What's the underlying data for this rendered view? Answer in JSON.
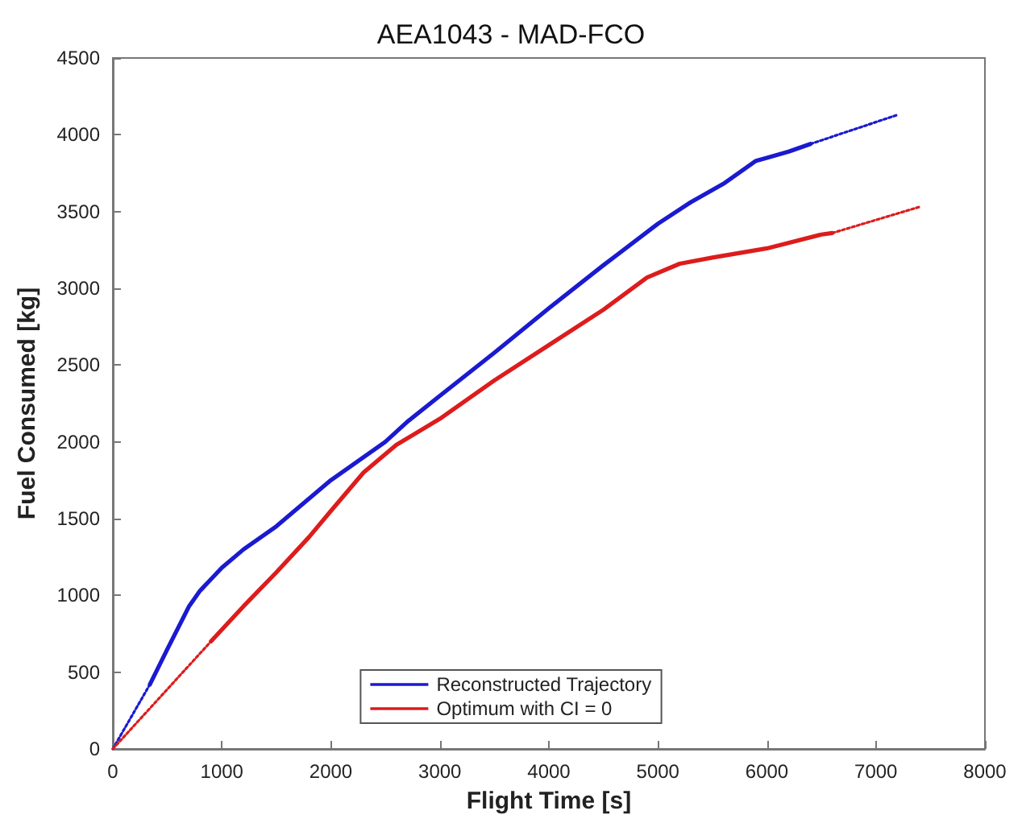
{
  "chart_data": {
    "type": "line",
    "title": "AEA1043 - MAD-FCO",
    "xlabel": "Flight Time [s]",
    "ylabel": "Fuel Consumed [kg]",
    "xlim": [
      0,
      8000
    ],
    "xticks": [
      0,
      1000,
      2000,
      3000,
      4000,
      5000,
      6000,
      7000,
      8000
    ],
    "ylim": [
      0,
      4500
    ],
    "yticks": [
      0,
      500,
      1000,
      1500,
      2000,
      2500,
      3000,
      3500,
      4000,
      4500
    ],
    "grid": false,
    "legend": "bottom",
    "marker": "none",
    "series": [
      {
        "name": "Reconstructed Trajectory",
        "color": "#1a1ad0",
        "line_style": "solid",
        "x": [
          340,
          500,
          700,
          800,
          1000,
          1200,
          1500,
          2000,
          2500,
          2700,
          3000,
          3500,
          4000,
          4500,
          5000,
          5300,
          5600,
          5900,
          6000,
          6200,
          6400
        ],
        "values": [
          420,
          650,
          930,
          1030,
          1180,
          1300,
          1450,
          1750,
          2000,
          2130,
          2300,
          2580,
          2870,
          3150,
          3420,
          3560,
          3680,
          3830,
          3850,
          3890,
          3940
        ]
      },
      {
        "name": "Optimum with CI = 0",
        "color": "#dd1c1c",
        "line_style": "solid",
        "x": [
          900,
          1200,
          1500,
          1800,
          2000,
          2300,
          2600,
          3000,
          3500,
          4000,
          4500,
          4900,
          5200,
          5500,
          6000,
          6500,
          6600
        ],
        "values": [
          700,
          930,
          1150,
          1380,
          1550,
          1800,
          1980,
          2150,
          2400,
          2630,
          2860,
          3070,
          3160,
          3200,
          3260,
          3350,
          3360
        ]
      },
      {
        "color": "#1a1ad0",
        "line_style": "dotted",
        "x": [
          0,
          340
        ],
        "values": [
          0,
          420
        ]
      },
      {
        "color": "#1a1ad0",
        "line_style": "dotted",
        "x": [
          6400,
          7200
        ],
        "values": [
          3940,
          4130
        ]
      },
      {
        "color": "#dd1c1c",
        "line_style": "dotted",
        "x": [
          0,
          900
        ],
        "values": [
          0,
          700
        ]
      },
      {
        "color": "#dd1c1c",
        "line_style": "dotted",
        "x": [
          6600,
          7400
        ],
        "values": [
          3360,
          3530
        ]
      }
    ]
  }
}
